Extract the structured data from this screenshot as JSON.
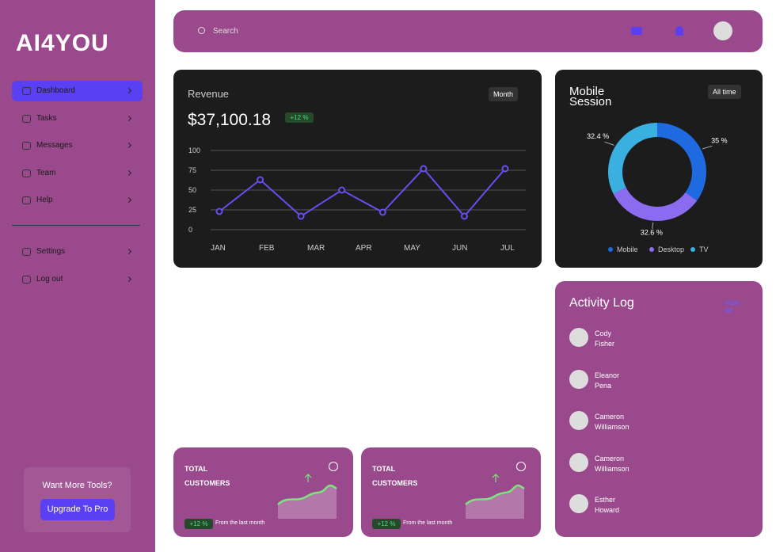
{
  "sidebar": {
    "brand": "AI4YOU",
    "nav": [
      "Dashboard",
      "Tasks",
      "Messages",
      "Team",
      "Help"
    ],
    "secondary": [
      "Settings",
      "Log out"
    ],
    "promo": {
      "text": "Want More Tools?",
      "button": "Upgrade To Pro"
    }
  },
  "header": {
    "search_placeholder": "Search"
  },
  "revenue": {
    "title": "Revenue",
    "amount": "$37,100.18",
    "badge": "+12 %",
    "period": "Month",
    "chart_data": {
      "type": "line",
      "categories": [
        "JAN",
        "FEB",
        "MAR",
        "APR",
        "MAY",
        "JUN",
        "JUL",
        null
      ],
      "values": [
        23,
        63,
        17,
        50,
        22,
        77,
        17,
        77
      ],
      "color": "#6a4cf0",
      "ylim": [
        0,
        100
      ],
      "yticks": [
        0,
        25,
        50,
        75,
        100
      ],
      "grid": true
    }
  },
  "mobile_session": {
    "title": "Mobile Session",
    "period": "All time",
    "chart_data": {
      "type": "donut",
      "categories": [
        "Mobile",
        "Desktop",
        "TV"
      ],
      "values": [
        35,
        32.6,
        32.4
      ],
      "value_labels": [
        "35 %",
        "32.6 %",
        "32.4 %"
      ],
      "colors": [
        "#1f6ae0",
        "#8b6cf0",
        "#3ab0e0"
      ]
    }
  },
  "activity_log": {
    "title": "Activity Log",
    "link": "View All",
    "entries": [
      "Cody Fisher",
      "Eleanor Pena",
      "Cameron Williamson",
      "Cameron Williamson",
      "Esther Howard"
    ]
  },
  "stat_cards": [
    {
      "title": "TOTAL CUSTOMERS",
      "badge": "+12 %",
      "note": "From the last month"
    },
    {
      "title": "TOTAL CUSTOMERS",
      "badge": "+12 %",
      "note": "From the last month"
    }
  ]
}
